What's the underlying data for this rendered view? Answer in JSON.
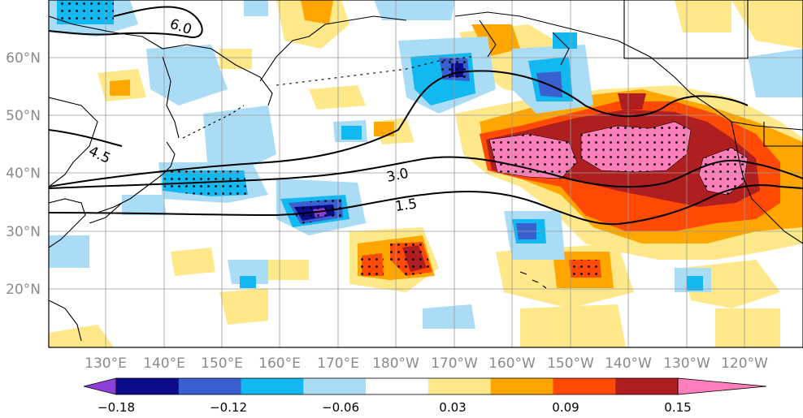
{
  "map": {
    "lon_ticks": [
      "130°E",
      "140°E",
      "150°E",
      "160°E",
      "170°E",
      "180°W",
      "170°W",
      "160°W",
      "150°W",
      "140°W",
      "130°W",
      "120°W"
    ],
    "lat_ticks": [
      "20°N",
      "30°N",
      "40°N",
      "50°N",
      "60°N"
    ],
    "contour_labels": [
      "6.0",
      "4.5",
      "3.0",
      "1.5"
    ]
  },
  "colorbar": {
    "tick_labels": [
      "−0.18",
      "−0.12",
      "−0.06",
      "0.03",
      "0.09",
      "0.15"
    ],
    "colors": [
      "#8e3fd9",
      "#0b0b8c",
      "#3a5fd0",
      "#12b8f0",
      "#aadcf6",
      "#ffffff",
      "#ffe88a",
      "#ffa600",
      "#ff4a05",
      "#b01f1f",
      "#ff7fba"
    ]
  },
  "colors": {
    "grid": "#9a9a9a",
    "tick_text": "#8a8a8a",
    "coast": "#000000"
  }
}
